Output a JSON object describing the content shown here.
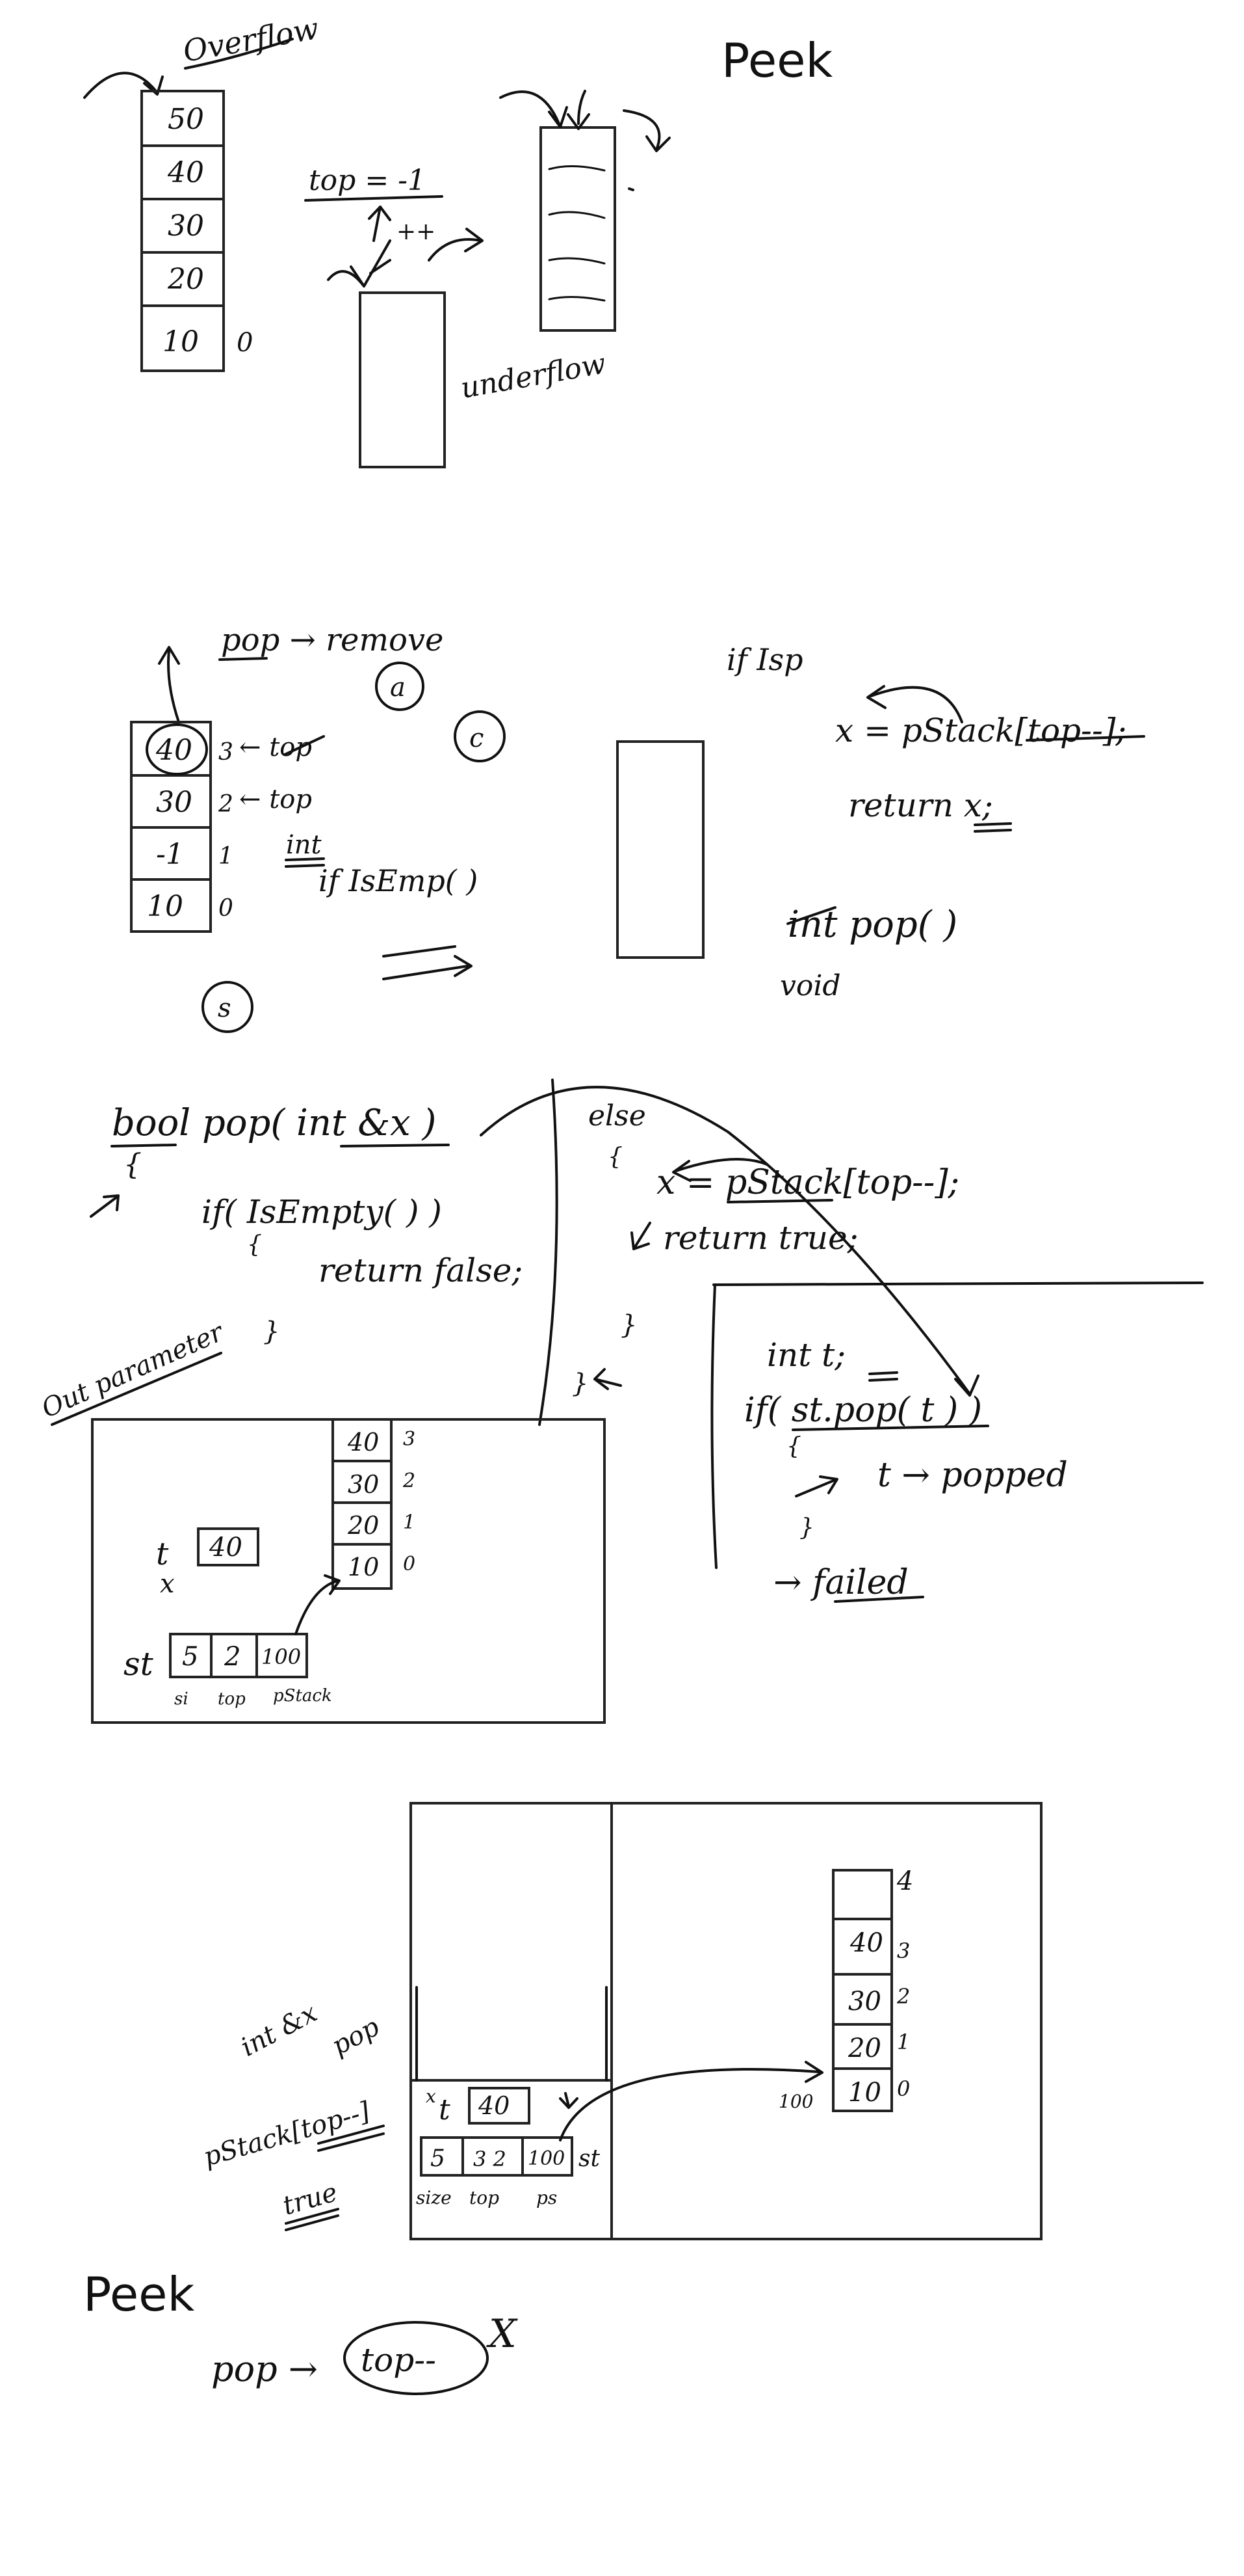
{
  "headings": {
    "peek_top": "Peek",
    "peek_bottom": "Peek"
  },
  "section1": {
    "overflow_label": "Overflow",
    "underflow_label": "underflow",
    "top_expr": "top = -1",
    "increment": "++",
    "stack_values": [
      "50",
      "40",
      "30",
      "20",
      "10"
    ],
    "stack_index_zero": "0"
  },
  "section2": {
    "pop_remove": "pop → remove",
    "circle_a": "a",
    "circle_c": "c",
    "circle_s": "s",
    "stack_values": [
      "40",
      "30",
      "-1",
      "10"
    ],
    "stack_indices": [
      "3",
      "2",
      "1",
      "0"
    ],
    "top_label_3": "← top",
    "top_label_2": "← top",
    "int_label": "int",
    "if_isempty": "if  IsEmp( )",
    "if_isp": "if  Isp",
    "assign_pop": "x = pStack[top--];",
    "return_x": "return  x;",
    "int_pop": "int  pop( )",
    "void_label": "void"
  },
  "section3": {
    "signature": "bool  pop( int &x )",
    "open_brace": "{",
    "if_isempty": "if( IsEmpty( ) )",
    "brace_open2": "{",
    "return_false": "return  false;",
    "close_brace": "}",
    "else_label": "else",
    "else_brace": "{",
    "assign_pop": "x = pStack[top--];",
    "return_true": "return true;",
    "close_brace2": "}",
    "close_brace3": "}",
    "out_param": "Out parameter",
    "mem_stack_values": [
      "40",
      "30",
      "20",
      "10"
    ],
    "mem_stack_indices": [
      "3",
      "2",
      "1",
      "0"
    ],
    "t_label": "t",
    "x_label": "x",
    "t_value": "40",
    "st_label": "st",
    "st_cells": [
      "5",
      "2",
      "100"
    ],
    "st_field_labels": [
      "si",
      "top",
      "pStack"
    ],
    "int_t": "int  t;",
    "if_st_pop": "if( st.pop( t ) )",
    "brace": "{",
    "popped": "t → popped",
    "close": "}",
    "failed": "→ failed"
  },
  "section4": {
    "int_ref_x": "int &x",
    "pop_label": "pop",
    "pstack_expr": "pStack[top--]",
    "true_label": "true",
    "x_small": "x",
    "t_label": "t",
    "t_value": "40",
    "st_cells": [
      "5",
      "3 2",
      "100"
    ],
    "st_field_labels": [
      "size",
      "top",
      "ps"
    ],
    "st_label": "st",
    "heap_addr": "100",
    "stack_values": [
      "",
      "40",
      "30",
      "20",
      "10"
    ],
    "stack_indices": [
      "4",
      "3",
      "2",
      "1",
      "0"
    ]
  },
  "section5": {
    "pop_arrow": "pop →",
    "circled": "top--",
    "cross": "X"
  }
}
